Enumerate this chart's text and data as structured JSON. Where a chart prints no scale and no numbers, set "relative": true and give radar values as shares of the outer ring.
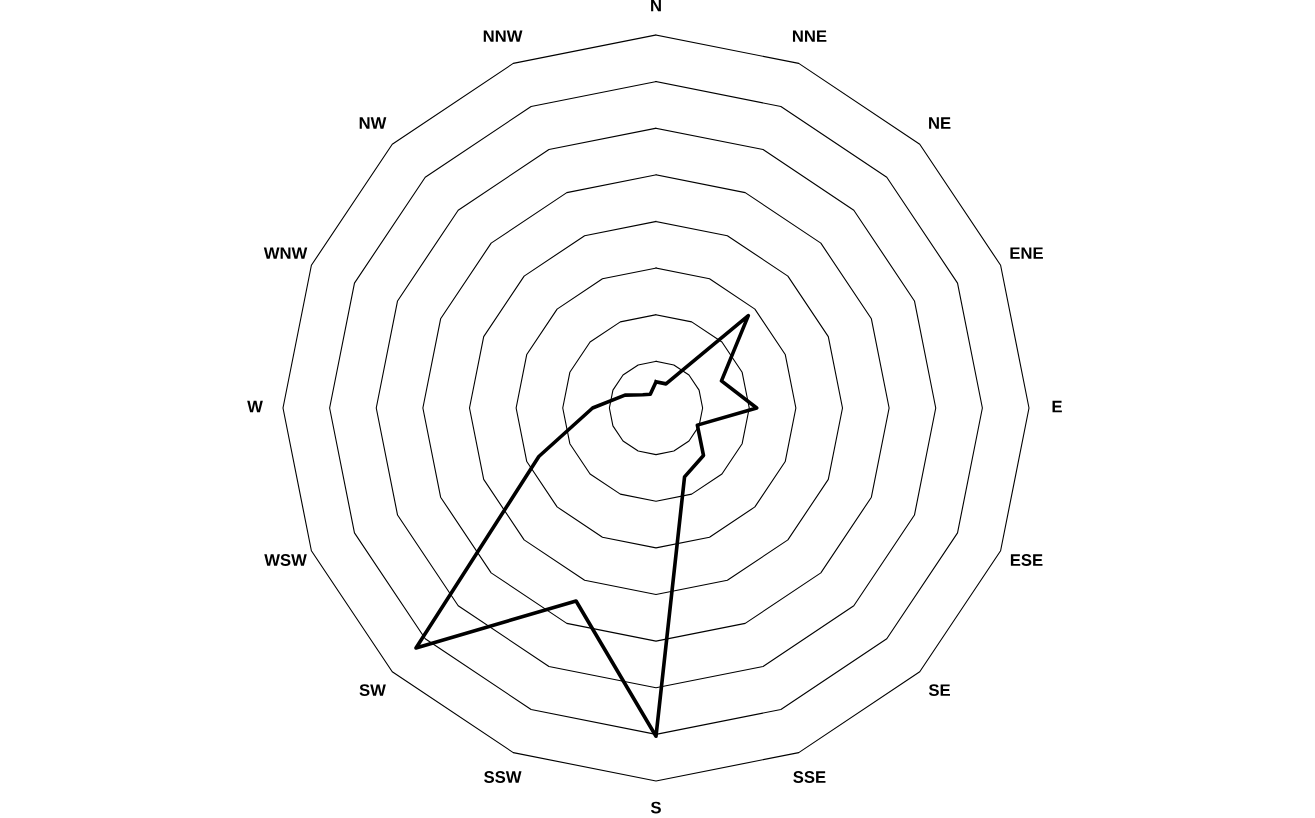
{
  "chart_data": {
    "type": "radar",
    "relative": true,
    "grid": true,
    "categories": [
      "N",
      "NNE",
      "NE",
      "ENE",
      "E",
      "ESE",
      "SE",
      "SSE",
      "S",
      "SSW",
      "SW",
      "WSW",
      "W",
      "WNW",
      "NW",
      "NNW"
    ],
    "series": [
      {
        "color": "#000000",
        "values": [
          0.07,
          0.07,
          0.35,
          0.19,
          0.27,
          0.12,
          0.18,
          0.2,
          0.88,
          0.56,
          0.91,
          0.34,
          0.17,
          0.09,
          0.05,
          0.04
        ]
      }
    ],
    "marker": "none",
    "line_style": "solid"
  }
}
